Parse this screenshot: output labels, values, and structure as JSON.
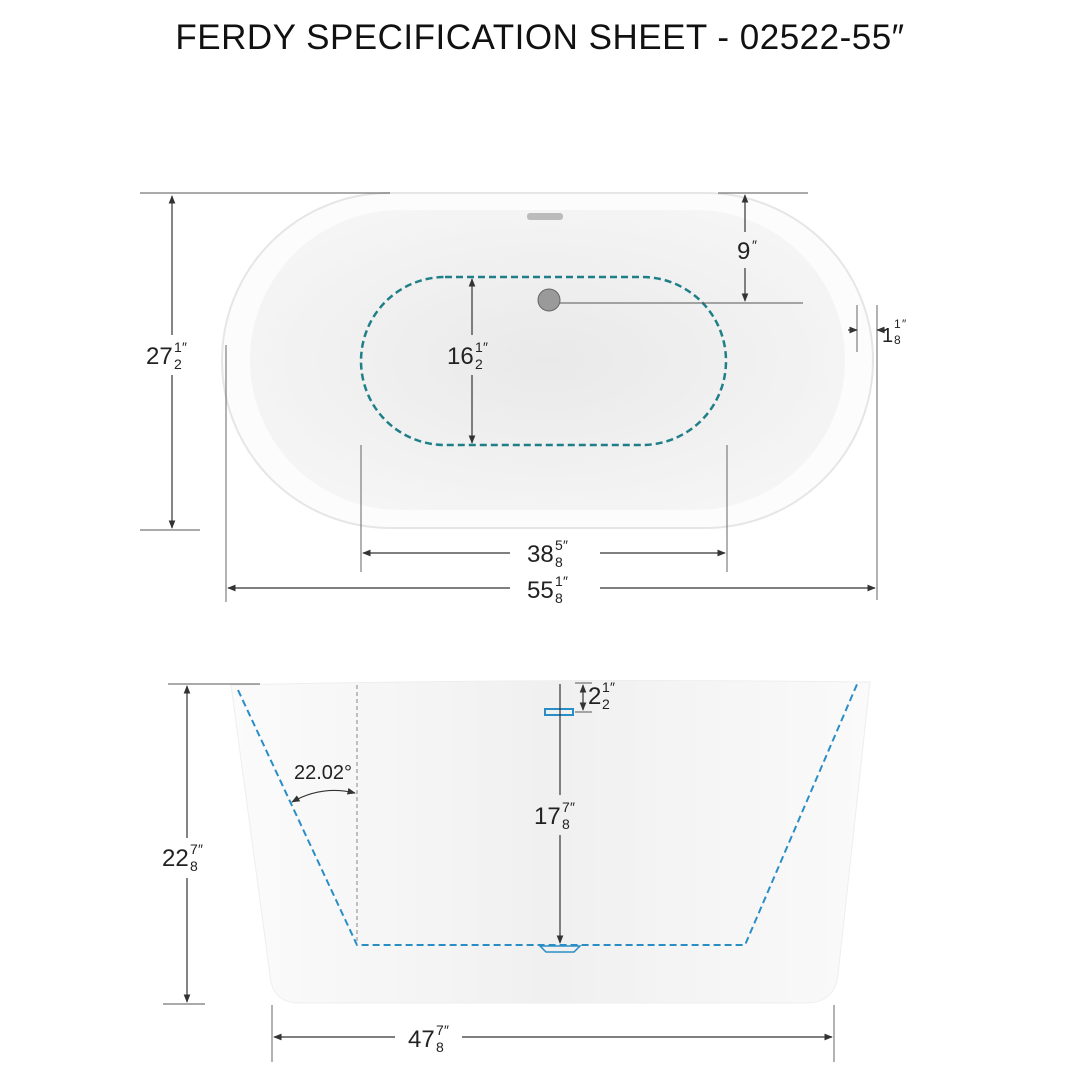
{
  "title": "FERDY SPECIFICATION SHEET - 02522-55″",
  "colors": {
    "inner_basin_top": "#1f7f88",
    "inner_basin_side": "#2a8ec6",
    "dimension_line": "#333333"
  },
  "top_view": {
    "overall_width": {
      "whole": "27",
      "num": "1",
      "den": "2",
      "unit": "″"
    },
    "drain_offset": {
      "whole": "9",
      "unit": "″"
    },
    "basin_width": {
      "whole": "16",
      "num": "1",
      "den": "2",
      "unit": "″"
    },
    "rim_thickness": {
      "whole": "1",
      "num": "1",
      "den": "8",
      "unit": "″"
    },
    "basin_length": {
      "whole": "38",
      "num": "5",
      "den": "8",
      "unit": "″"
    },
    "overall_length": {
      "whole": "55",
      "num": "1",
      "den": "8",
      "unit": "″"
    }
  },
  "side_view": {
    "overflow_depth": {
      "whole": "2",
      "num": "1",
      "den": "2",
      "unit": "″"
    },
    "wall_angle": "22.02°",
    "water_depth": {
      "whole": "17",
      "num": "7",
      "den": "8",
      "unit": "″"
    },
    "overall_height": {
      "whole": "22",
      "num": "7",
      "den": "8",
      "unit": "″"
    },
    "base_length": {
      "whole": "47",
      "num": "7",
      "den": "8",
      "unit": "″"
    }
  }
}
